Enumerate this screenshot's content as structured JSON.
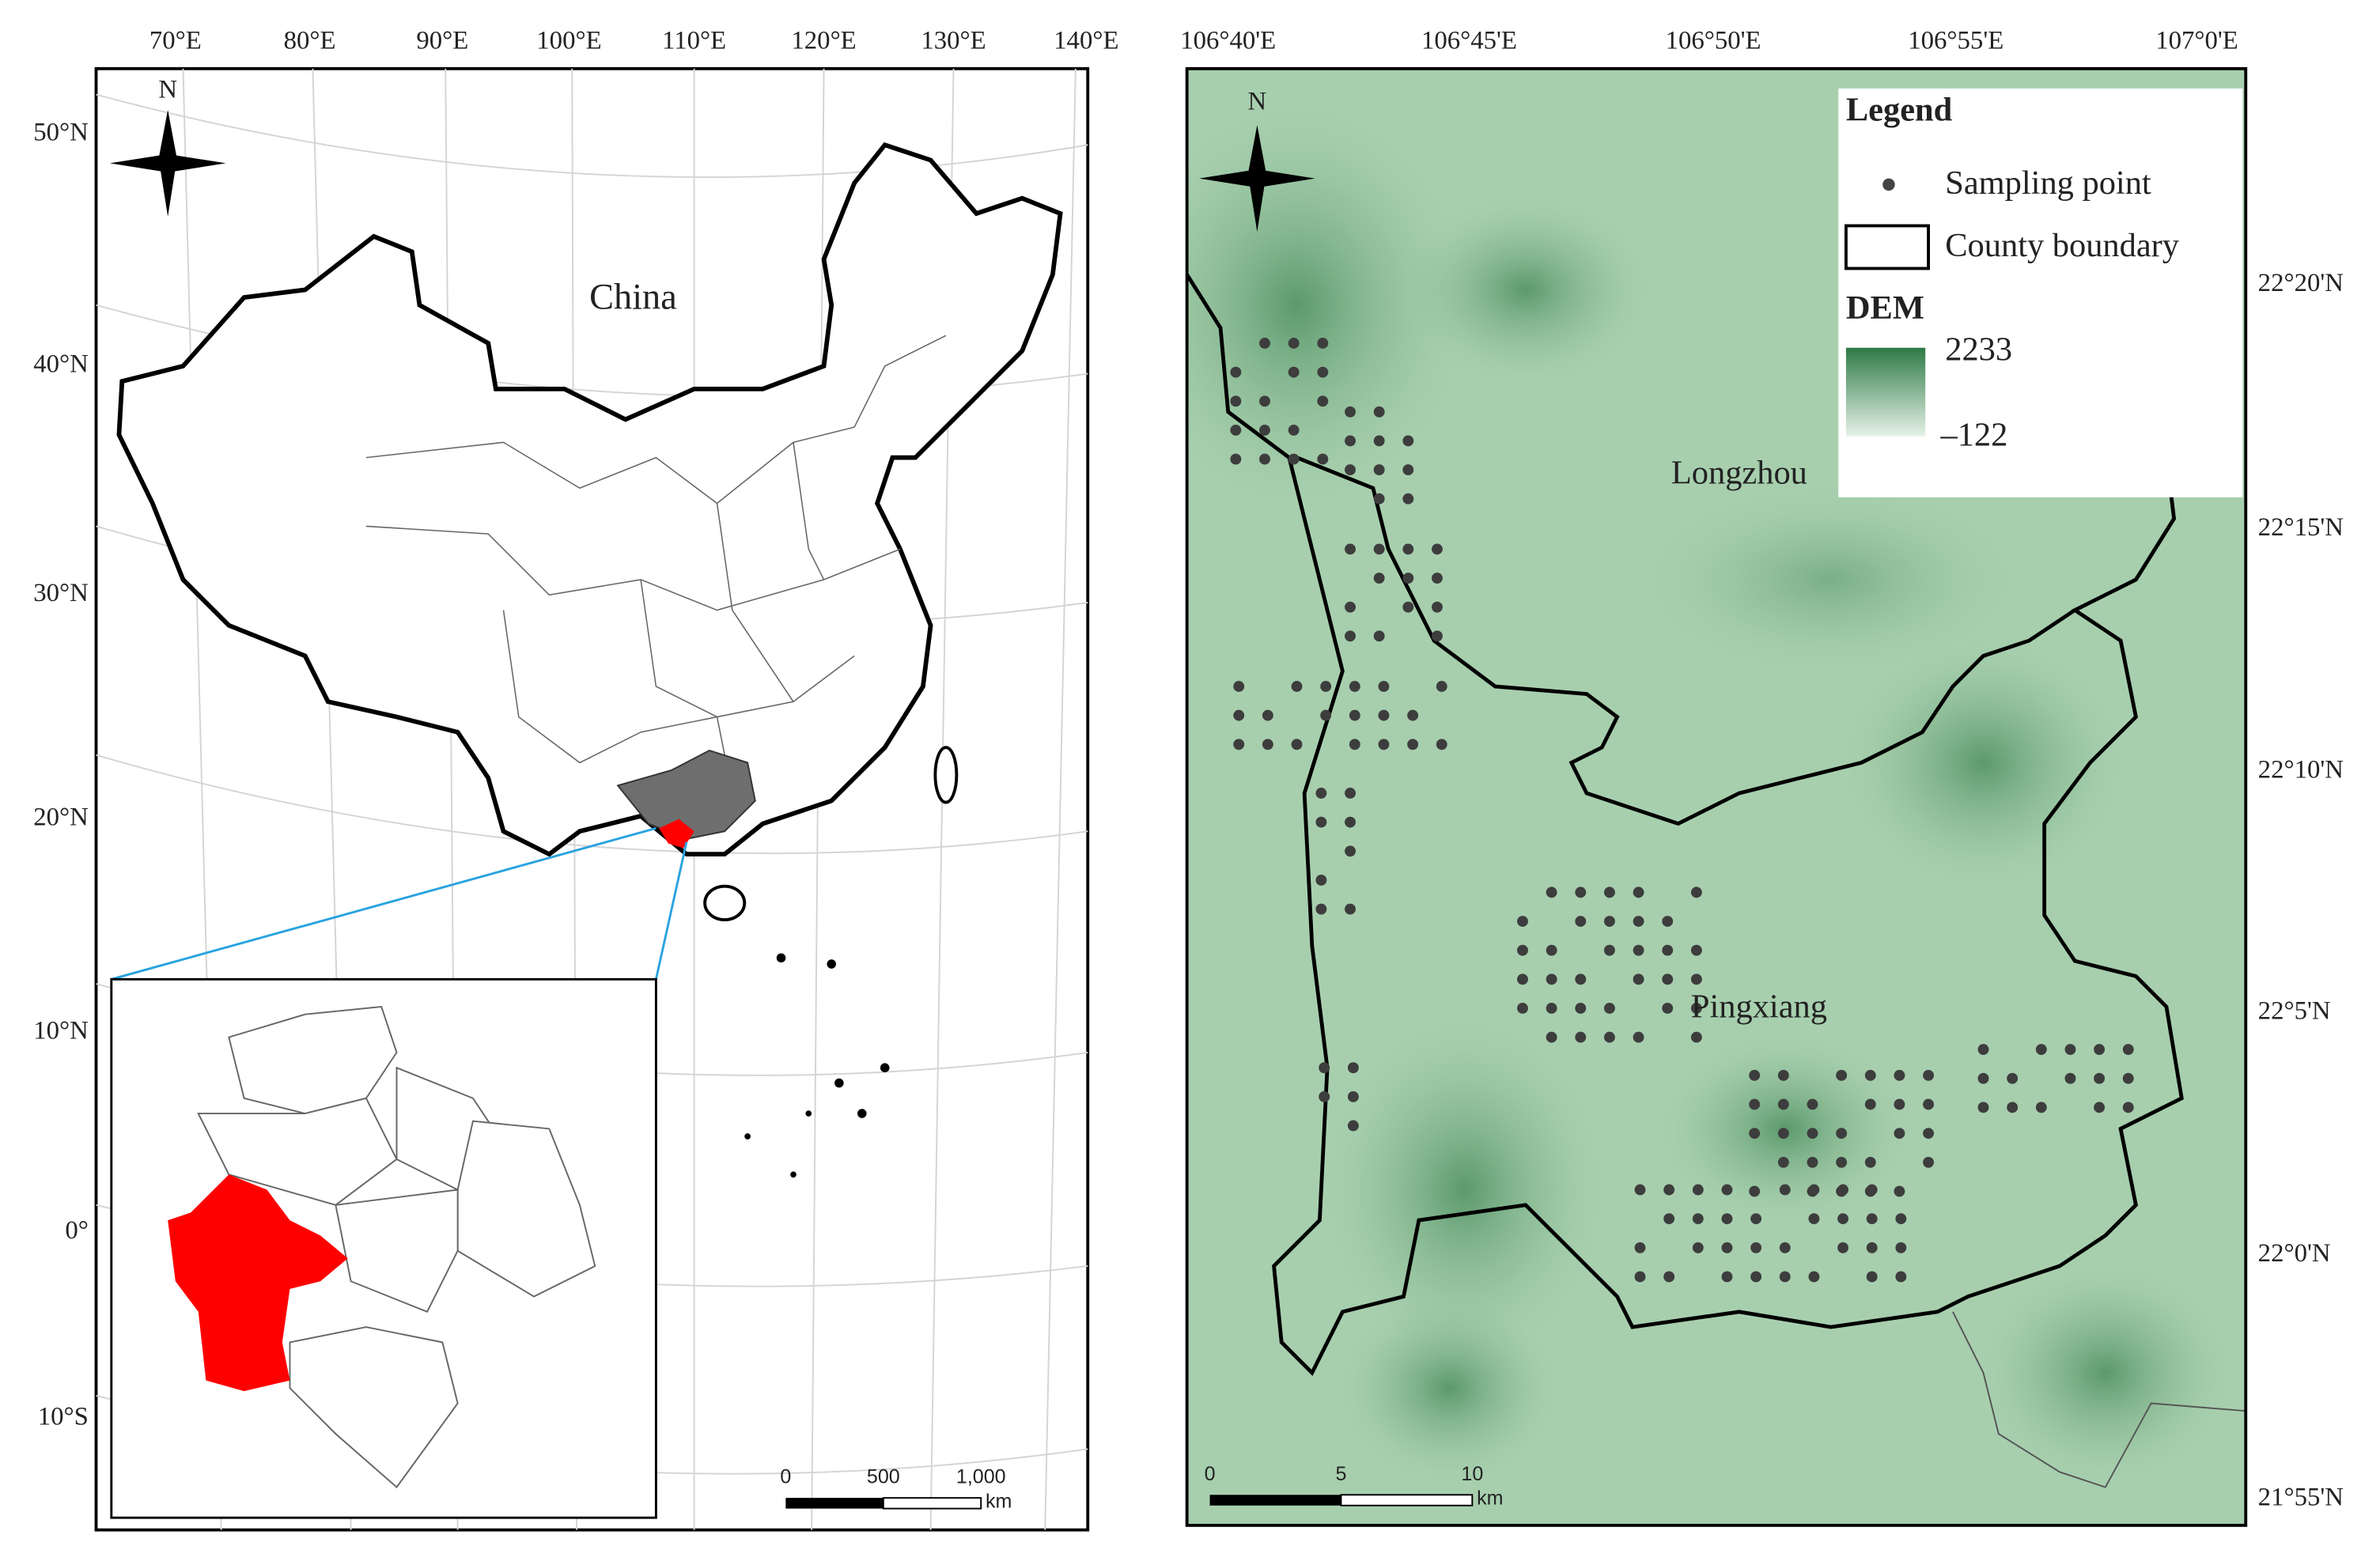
{
  "left_map": {
    "lon_labels": [
      "70°E",
      "80°E",
      "90°E",
      "100°E",
      "110°E",
      "120°E",
      "130°E",
      "140°E"
    ],
    "lat_labels": [
      "50°N",
      "40°N",
      "30°N",
      "20°N",
      "10°N",
      "0°",
      "10°S"
    ],
    "north_label": "N",
    "country_label": "China",
    "scale_labels": [
      "0",
      "500",
      "1,000",
      "km"
    ]
  },
  "right_map": {
    "lon_labels": [
      "106°40'E",
      "106°45'E",
      "106°50'E",
      "106°55'E",
      "107°0'E"
    ],
    "lat_labels": [
      "22°20'N",
      "22°15'N",
      "22°10'N",
      "22°5'N",
      "22°0'N",
      "21°55'N"
    ],
    "north_label": "N",
    "place_labels": [
      "Longzhou",
      "Pingxiang"
    ],
    "legend": {
      "title": "Legend",
      "items": [
        "Sampling point",
        "County boundary"
      ],
      "dem_title": "DEM",
      "dem_max": "2233",
      "dem_min": "–122"
    },
    "scale_labels": [
      "0",
      "5",
      "10",
      "km"
    ]
  }
}
